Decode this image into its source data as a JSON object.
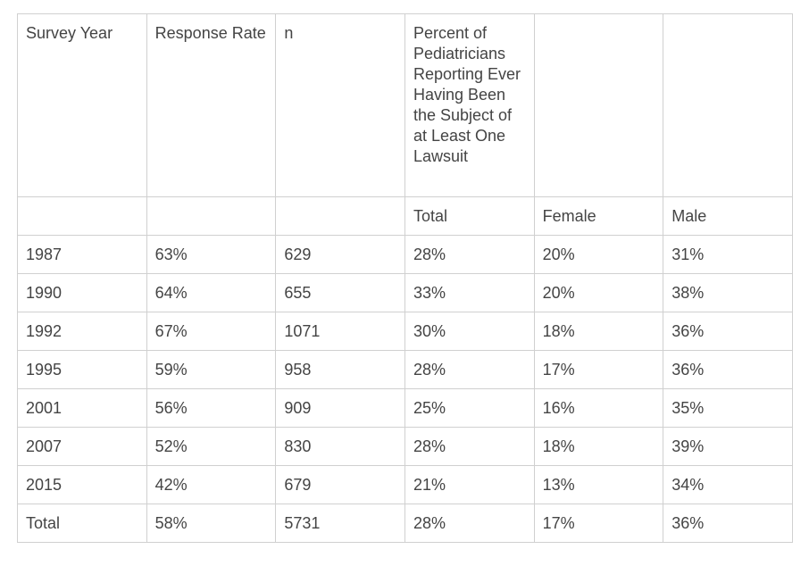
{
  "table": {
    "header": [
      "Survey Year",
      "Response Rate",
      "n",
      "Percent of Pediatricians Reporting Ever Having Been the Subject of at Least One Lawsuit"
    ],
    "subheader": [
      "Total",
      "Female",
      "Male"
    ],
    "rows": [
      [
        "1987",
        "63%",
        "629",
        "28%",
        "20%",
        "31%"
      ],
      [
        "1990",
        "64%",
        "655",
        "33%",
        "20%",
        "38%"
      ],
      [
        "1992",
        "67%",
        "1071",
        "30%",
        "18%",
        "36%"
      ],
      [
        "1995",
        "59%",
        "958",
        "28%",
        "17%",
        "36%"
      ],
      [
        "2001",
        "56%",
        "909",
        "25%",
        "16%",
        "35%"
      ],
      [
        "2007",
        "52%",
        "830",
        "28%",
        "18%",
        "39%"
      ],
      [
        "2015",
        "42%",
        "679",
        "21%",
        "13%",
        "34%"
      ],
      [
        "Total",
        "58%",
        "5731",
        "28%",
        "17%",
        "36%"
      ]
    ]
  }
}
